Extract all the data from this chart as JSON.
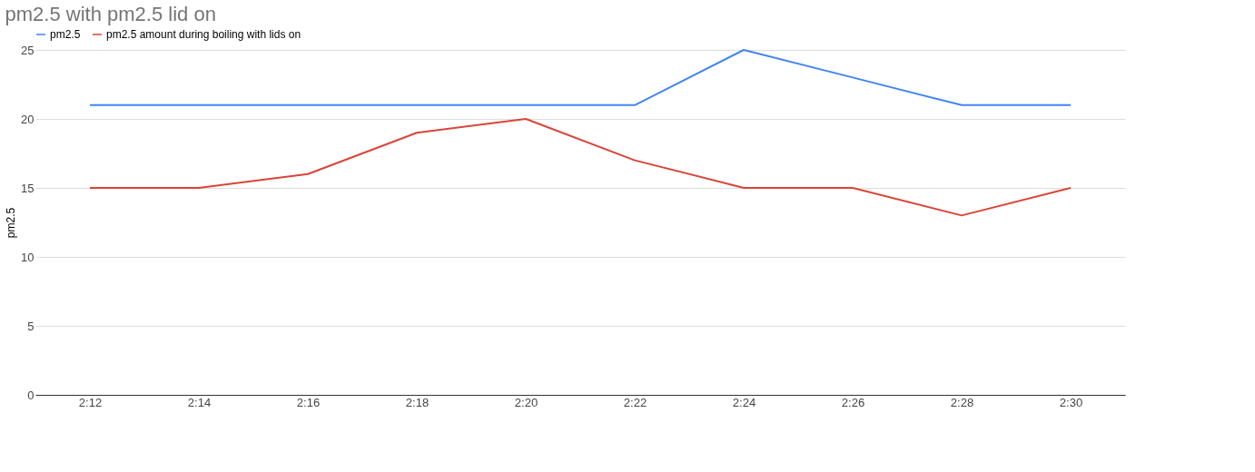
{
  "chart_data": {
    "type": "line",
    "title": "pm2.5 with pm2.5 lid on",
    "ylabel": "pm2.5",
    "categories": [
      "2:12",
      "2:14",
      "2:16",
      "2:18",
      "2:20",
      "2:22",
      "2:24",
      "2:26",
      "2:28",
      "2:30"
    ],
    "series": [
      {
        "name": "pm2.5",
        "color": "#4285f4",
        "values": [
          21,
          21,
          21,
          21,
          21,
          21,
          25,
          23,
          21,
          21
        ]
      },
      {
        "name": "pm2.5 amount during boiling with lids on",
        "color": "#db4437",
        "values": [
          15,
          15,
          16,
          19,
          20,
          17,
          15,
          15,
          13,
          15
        ]
      }
    ],
    "ylim": [
      0,
      25
    ],
    "yticks": [
      0,
      5,
      10,
      15,
      20,
      25
    ],
    "grid": "y",
    "legend": "top left",
    "marker": "none",
    "line_style": "solid"
  }
}
